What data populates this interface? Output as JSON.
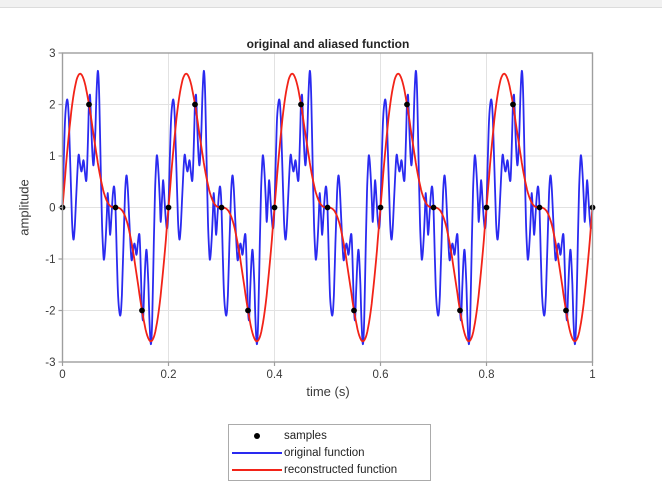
{
  "palette": {
    "background": "#ffffff",
    "top_strip": "#f1f1f1",
    "axis_box": "#9e9e9e",
    "grid": "#e2e2e2",
    "tick_text": "#3a3a3a",
    "title_text": "#232323",
    "samples_color": "#000000",
    "original_color": "#2a2af0",
    "reconstructed_color": "#f22318"
  },
  "chart_data": {
    "type": "line",
    "title": "original and aliased function",
    "xlabel": "time (s)",
    "ylabel": "amplitude",
    "xlim": [
      0,
      1
    ],
    "ylim": [
      -3,
      3
    ],
    "grid": true,
    "xticks": [
      {
        "value": 0,
        "label": "0"
      },
      {
        "value": 0.2,
        "label": "0.2"
      },
      {
        "value": 0.4,
        "label": "0.4"
      },
      {
        "value": 0.6,
        "label": "0.6"
      },
      {
        "value": 0.8,
        "label": "0.8"
      },
      {
        "value": 1,
        "label": "1"
      }
    ],
    "yticks": [
      {
        "value": 3,
        "label": "3"
      },
      {
        "value": 2,
        "label": "2"
      },
      {
        "value": 1,
        "label": "1"
      },
      {
        "value": 0,
        "label": "0"
      },
      {
        "value": -1,
        "label": "-1"
      },
      {
        "value": -2,
        "label": "-2"
      },
      {
        "value": -3,
        "label": "-3"
      }
    ],
    "legend": {
      "position": "below-plot",
      "entries": [
        {
          "label": "samples",
          "marker": "dot",
          "color": "#000000"
        },
        {
          "label": "original function",
          "marker": "line",
          "color": "#2a2af0"
        },
        {
          "label": "reconstructed function",
          "marker": "line",
          "color": "#f22318"
        }
      ]
    },
    "sampling": {
      "interval_s": 0.05,
      "rate_hz": 20
    },
    "series": [
      {
        "name": "samples",
        "type": "scatter",
        "color": "#000000",
        "marker": "filled-circle",
        "x": [
          0,
          0.05,
          0.1,
          0.15,
          0.2,
          0.25,
          0.3,
          0.35,
          0.4,
          0.45,
          0.5,
          0.55,
          0.6,
          0.65,
          0.7,
          0.75,
          0.8,
          0.85,
          0.9,
          0.95,
          1.0
        ],
        "y": [
          0,
          2,
          0,
          -2,
          0,
          2,
          0,
          -2,
          0,
          2,
          0,
          -2,
          0,
          2,
          0,
          -2,
          0,
          2,
          0,
          -2,
          0
        ]
      },
      {
        "name": "original function",
        "type": "line",
        "color": "#2a2af0",
        "linewidth": 1.8,
        "periodic": true,
        "period_s": 0.2,
        "num_periods": 5,
        "halfwave_antisymmetric": true,
        "peak_amplitude": 2.65,
        "period_keypoints_first_half": [
          [
            0.0,
            0.0
          ],
          [
            0.0025,
            0.95
          ],
          [
            0.005,
            1.75
          ],
          [
            0.009,
            2.1
          ],
          [
            0.012,
            1.7
          ],
          [
            0.015,
            0.7
          ],
          [
            0.018,
            -0.25
          ],
          [
            0.0205,
            -0.62
          ],
          [
            0.023,
            -0.4
          ],
          [
            0.026,
            0.25
          ],
          [
            0.03,
            1.0
          ],
          [
            0.033,
            0.85
          ],
          [
            0.036,
            0.7
          ],
          [
            0.0395,
            0.92
          ],
          [
            0.042,
            0.7
          ],
          [
            0.045,
            0.52
          ],
          [
            0.047,
            0.95
          ],
          [
            0.049,
            1.7
          ],
          [
            0.05,
            2.0
          ],
          [
            0.052,
            2.17
          ],
          [
            0.0545,
            1.5
          ],
          [
            0.057,
            0.95
          ],
          [
            0.059,
            0.86
          ],
          [
            0.062,
            1.5
          ],
          [
            0.0645,
            2.3
          ],
          [
            0.067,
            2.65
          ],
          [
            0.0695,
            2.1
          ],
          [
            0.072,
            0.8
          ],
          [
            0.0745,
            -0.3
          ],
          [
            0.077,
            -0.9
          ],
          [
            0.0785,
            -1.0
          ],
          [
            0.081,
            -0.7
          ],
          [
            0.0835,
            -0.15
          ],
          [
            0.0855,
            0.28
          ],
          [
            0.088,
            -0.2
          ],
          [
            0.09,
            -0.53
          ],
          [
            0.0925,
            -0.15
          ],
          [
            0.095,
            0.25
          ],
          [
            0.0975,
            0.4
          ],
          [
            0.1,
            0.0
          ]
        ]
      },
      {
        "name": "reconstructed function",
        "type": "line",
        "color": "#f22318",
        "linewidth": 1.8,
        "formula": "y(t) = 2*sin(2*pi*5*t) + 1*sin(2*pi*10*t)",
        "sinusoids": [
          {
            "freq_hz": 5,
            "amplitude": 2
          },
          {
            "freq_hz": 10,
            "amplitude": 1
          }
        ],
        "extrema": {
          "max": 2.6,
          "min": -2.6
        }
      }
    ]
  }
}
